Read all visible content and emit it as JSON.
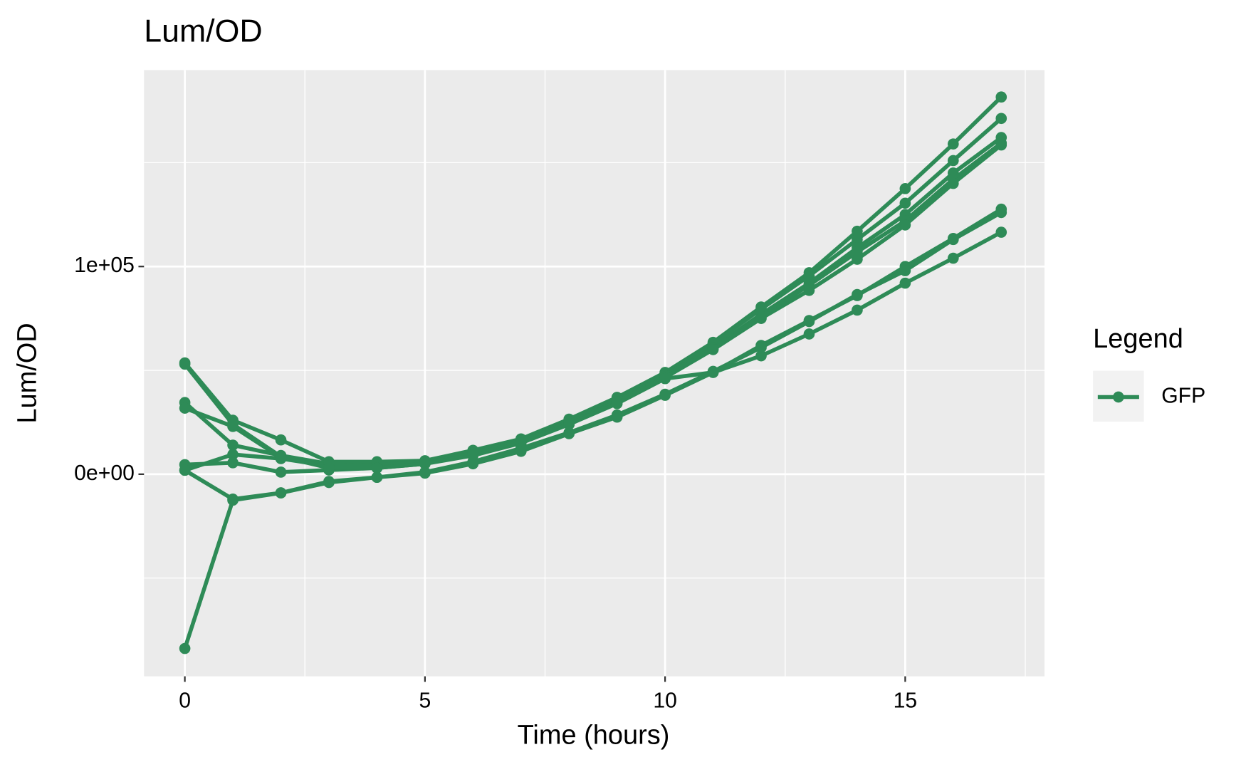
{
  "chart_data": {
    "type": "line",
    "title": "Lum/OD",
    "x_label": "Time (hours)",
    "y_label": "Lum/OD",
    "legend_title": "Legend",
    "legend_position": "right",
    "grid": true,
    "xlim": [
      -0.85,
      17.9
    ],
    "xticks": [
      0,
      5,
      10,
      15
    ],
    "ylim": [
      -97300,
      194600
    ],
    "yticks": [
      {
        "value": 0,
        "label": "0e+00"
      },
      {
        "value": 100000,
        "label": "1e+05"
      }
    ],
    "x": [
      0,
      1,
      2,
      3,
      4,
      5,
      6,
      7,
      8,
      9,
      10,
      11,
      12,
      13,
      14,
      15,
      16,
      17
    ],
    "series": [
      {
        "name": "GFP",
        "color": "#2e8b57",
        "values": [
          53600,
          26000,
          16500,
          6000,
          6000,
          6500,
          11500,
          17000,
          26500,
          37000,
          49000,
          63500,
          80500,
          97000,
          117000,
          137500,
          159000,
          181600
        ]
      },
      {
        "name": "GFP",
        "color": "#2e8b57",
        "values": [
          34500,
          14000,
          9000,
          5000,
          5000,
          6000,
          10500,
          16500,
          25500,
          36000,
          48500,
          63000,
          79500,
          95500,
          113000,
          130500,
          151000,
          171300
        ]
      },
      {
        "name": "GFP",
        "color": "#2e8b57",
        "values": [
          31800,
          23000,
          8000,
          3500,
          4000,
          5500,
          10000,
          16000,
          25000,
          35000,
          47500,
          61000,
          77000,
          92000,
          109000,
          125000,
          145000,
          162100
        ]
      },
      {
        "name": "GFP",
        "color": "#2e8b57",
        "values": [
          1900,
          9500,
          7500,
          4000,
          4500,
          5500,
          10000,
          16000,
          24500,
          35000,
          47000,
          60500,
          76000,
          91000,
          107000,
          122000,
          142000,
          159400
        ]
      },
      {
        "name": "GFP",
        "color": "#2e8b57",
        "values": [
          4600,
          5500,
          1000,
          2000,
          3000,
          5000,
          9500,
          15500,
          24000,
          34500,
          46500,
          60000,
          75000,
          88500,
          103500,
          120000,
          140000,
          158500
        ]
      },
      {
        "name": "GFP",
        "color": "#2e8b57",
        "values": [
          53000,
          24000,
          8500,
          3000,
          3000,
          5000,
          9000,
          15000,
          24000,
          34000,
          46000,
          49000,
          62000,
          74000,
          86000,
          100000,
          113500,
          127600
        ]
      },
      {
        "name": "GFP",
        "color": "#2e8b57",
        "values": [
          1900,
          -12000,
          -9000,
          -3500,
          -1500,
          1000,
          6000,
          12500,
          20000,
          28500,
          38500,
          49500,
          61000,
          73500,
          86500,
          98000,
          113000,
          126000
        ]
      },
      {
        "name": "GFP",
        "color": "#2e8b57",
        "values": [
          -83900,
          -12500,
          -9000,
          -4000,
          -1500,
          500,
          5000,
          11000,
          19500,
          27500,
          38000,
          49000,
          57000,
          67500,
          79000,
          92000,
          104000,
          116500
        ]
      }
    ]
  }
}
